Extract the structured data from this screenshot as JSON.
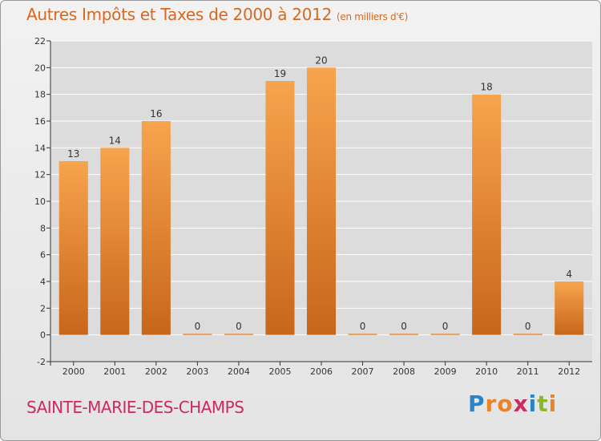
{
  "header": {
    "title": "Autres Impôts et Taxes de 2000 à 2012",
    "unit": "(en milliers d'€)"
  },
  "footer": {
    "commune": "SAINTE-MARIE-DES-CHAMPS",
    "logo_letters": [
      "P",
      "r",
      "o",
      "x",
      "i",
      "t",
      "i"
    ],
    "logo_colors": [
      "#2a84c8",
      "#e8842a",
      "#e8842a",
      "#cc2a60",
      "#2a84c8",
      "#8ab82a",
      "#e8842a"
    ]
  },
  "colors": {
    "bar_light": "#f7a44e",
    "bar_dark": "#c8661a",
    "grid": "#ffffff",
    "plot_bg": "#dcdcdc"
  },
  "chart_data": {
    "type": "bar",
    "categories": [
      "2000",
      "2001",
      "2002",
      "2003",
      "2004",
      "2005",
      "2006",
      "2007",
      "2008",
      "2009",
      "2010",
      "2011",
      "2012"
    ],
    "values": [
      13,
      14,
      16,
      0,
      0,
      19,
      20,
      0,
      0,
      0,
      18,
      0,
      4
    ],
    "data_labels": [
      "13",
      "14",
      "16",
      "0",
      "0",
      "19",
      "20",
      "0",
      "0",
      "0",
      "18",
      "0",
      "4"
    ],
    "y_ticks": [
      "-2",
      "0",
      "2",
      "4",
      "6",
      "8",
      "10",
      "12",
      "14",
      "16",
      "18",
      "20",
      "22"
    ],
    "ylim": [
      -2,
      22
    ],
    "grid": true,
    "title": "Autres Impôts et Taxes de 2000 à 2012",
    "xlabel": "",
    "ylabel": ""
  }
}
